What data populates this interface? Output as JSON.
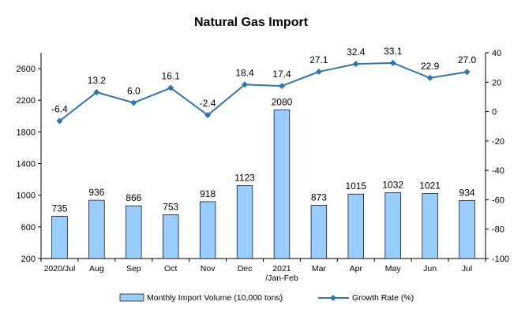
{
  "chart_data": {
    "type": "bar+line",
    "title": "Natural Gas Import",
    "categories": [
      [
        "2020/Jul"
      ],
      [
        "Aug"
      ],
      [
        "Sep"
      ],
      [
        "Oct"
      ],
      [
        "Nov"
      ],
      [
        "Dec"
      ],
      [
        "2021",
        "/Jan-Feb"
      ],
      [
        "Mar"
      ],
      [
        "Apr"
      ],
      [
        "May"
      ],
      [
        "Jun"
      ],
      [
        "Jul"
      ]
    ],
    "series": [
      {
        "name": "Monthly Import Volume (10,000 tons)",
        "type": "bar",
        "axis": "left",
        "values": [
          735,
          936,
          866,
          753,
          918,
          1123,
          2080,
          873,
          1015,
          1032,
          1021,
          934
        ],
        "color": "#99CCFF"
      },
      {
        "name": "Growth Rate (%)",
        "type": "line",
        "axis": "right",
        "values": [
          -6.4,
          13.2,
          6.0,
          16.1,
          -2.4,
          18.4,
          17.4,
          27.1,
          32.4,
          33.1,
          22.9,
          27.0
        ],
        "labels": [
          "-6.4",
          "13.2",
          "6.0",
          "16.1",
          "-2.4",
          "18.4",
          "17.4",
          "27.1",
          "32.4",
          "33.1",
          "22.9",
          "27.0"
        ],
        "color": "#2E75B6"
      }
    ],
    "y_left": {
      "ylim": [
        200,
        2800
      ],
      "ticks": [
        200,
        600,
        1000,
        1400,
        1800,
        2200,
        2600
      ]
    },
    "y_right": {
      "ylim": [
        -100,
        40
      ],
      "ticks": [
        -100,
        -80,
        -60,
        -40,
        -20,
        0,
        20,
        40
      ]
    },
    "legend_position": "bottom",
    "grid": false
  }
}
